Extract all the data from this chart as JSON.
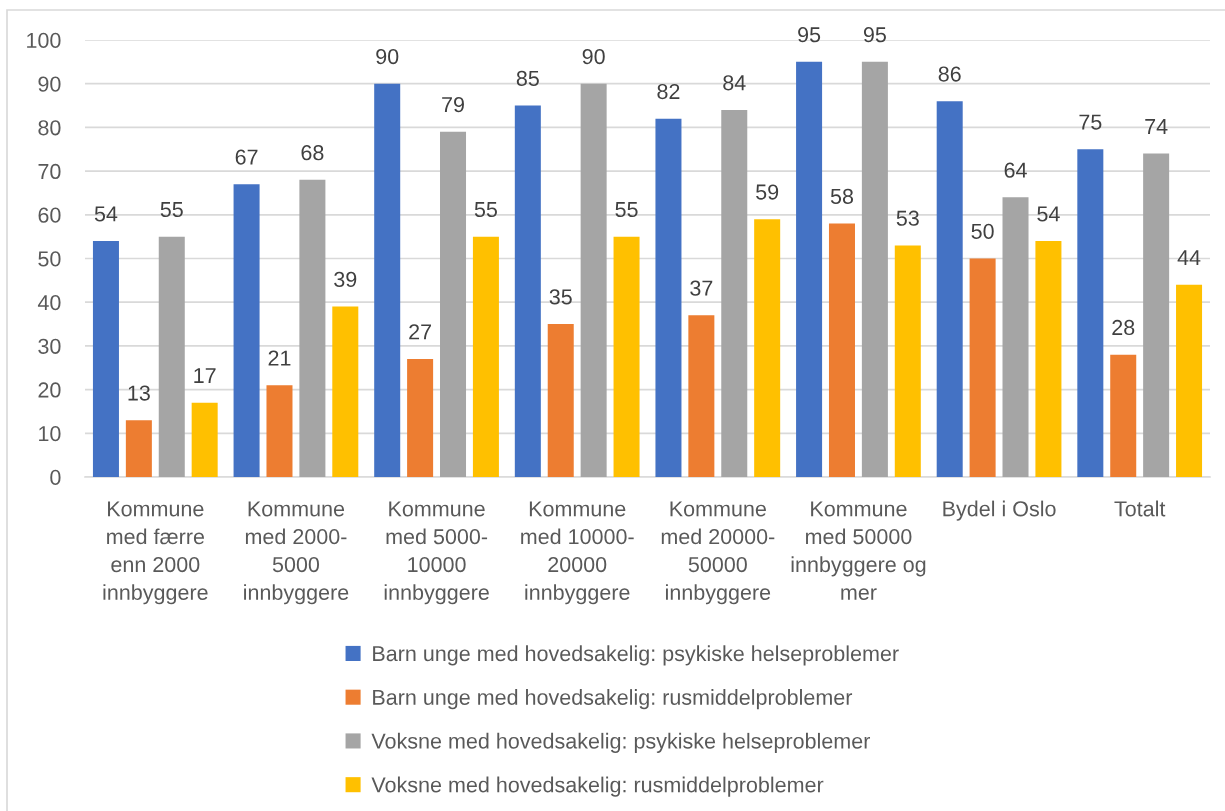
{
  "chart_data": {
    "type": "bar",
    "categories": [
      "Kommune\nmed færre\nenn 2000\ninnbyggere",
      "Kommune\nmed 2000-\n5000\ninnbyggere",
      "Kommune\nmed 5000-\n10000\ninnbyggere",
      "Kommune\nmed 10000-\n20000\ninnbyggere",
      "Kommune\nmed 20000-\n50000\ninnbyggere",
      "Kommune\nmed 50000\ninnbyggere og\nmer",
      "Bydel i Oslo",
      "Totalt"
    ],
    "series": [
      {
        "name": "Barn unge med hovedsakelig: psykiske helseproblemer",
        "color": "#4472c4",
        "values": [
          54,
          67,
          90,
          85,
          82,
          95,
          86,
          75
        ]
      },
      {
        "name": "Barn unge med hovedsakelig: rusmiddelproblemer",
        "color": "#ed7d31",
        "values": [
          13,
          21,
          27,
          35,
          37,
          58,
          50,
          28
        ]
      },
      {
        "name": "Voksne med hovedsakelig: psykiske helseproblemer",
        "color": "#a5a5a5",
        "values": [
          55,
          68,
          79,
          90,
          84,
          95,
          64,
          74
        ]
      },
      {
        "name": "Voksne med hovedsakelig: rusmiddelproblemer",
        "color": "#ffc000",
        "values": [
          17,
          39,
          55,
          55,
          59,
          53,
          54,
          44
        ]
      }
    ],
    "ylim": [
      0,
      100
    ],
    "yticks": [
      0,
      10,
      20,
      30,
      40,
      50,
      60,
      70,
      80,
      90,
      100
    ],
    "grid": "y",
    "legend": "bottom",
    "data_labels": true
  }
}
